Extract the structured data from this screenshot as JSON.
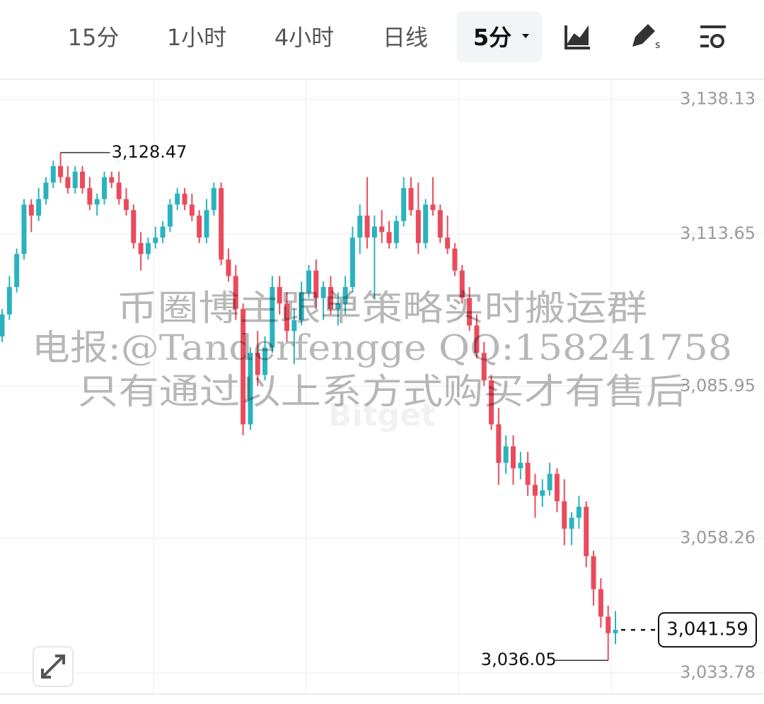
{
  "tabs": [
    "15分",
    "1小时",
    "4小时",
    "日线",
    "5分"
  ],
  "watermark": [
    "币圈博主跟单策略实时搬运群",
    "电报:@Tanderfengge QQ:158241758",
    "只有通过以上系方式购买才有售后"
  ],
  "logo": "Bitget",
  "chart_data": {
    "type": "candlestick",
    "up_color": "#2ab3bf",
    "down_color": "#ea4b5c",
    "ylim": [
      3029.9,
      3141.7
    ],
    "yticks": [
      {
        "value": 3138.13,
        "label": "3,138.13"
      },
      {
        "value": 3113.65,
        "label": "3,113.65"
      },
      {
        "value": 3085.95,
        "label": "3,085.95"
      },
      {
        "value": 3058.26,
        "label": "3,058.26"
      },
      {
        "value": 3033.78,
        "label": "3,033.78"
      }
    ],
    "grid": true,
    "max_label": "3,128.47",
    "min_label": "3,036.05",
    "last_label": "3,041.59",
    "candles": [
      {
        "open": 3095,
        "high": 3100,
        "low": 3094,
        "close": 3099
      },
      {
        "open": 3099,
        "high": 3106,
        "low": 3098,
        "close": 3104
      },
      {
        "open": 3104,
        "high": 3111,
        "low": 3103,
        "close": 3110
      },
      {
        "open": 3110,
        "high": 3120,
        "low": 3109,
        "close": 3119
      },
      {
        "open": 3119,
        "high": 3120,
        "low": 3114,
        "close": 3117
      },
      {
        "open": 3117,
        "high": 3122,
        "low": 3116,
        "close": 3120
      },
      {
        "open": 3120,
        "high": 3124,
        "low": 3119,
        "close": 3123
      },
      {
        "open": 3123,
        "high": 3127,
        "low": 3122,
        "close": 3126
      },
      {
        "open": 3126,
        "high": 3128.47,
        "low": 3123,
        "close": 3124
      },
      {
        "open": 3124,
        "high": 3126,
        "low": 3121,
        "close": 3122
      },
      {
        "open": 3122,
        "high": 3126,
        "low": 3121,
        "close": 3125
      },
      {
        "open": 3125,
        "high": 3126,
        "low": 3121,
        "close": 3122
      },
      {
        "open": 3122,
        "high": 3124,
        "low": 3118,
        "close": 3119
      },
      {
        "open": 3119,
        "high": 3121,
        "low": 3117,
        "close": 3120
      },
      {
        "open": 3120,
        "high": 3125,
        "low": 3119,
        "close": 3124
      },
      {
        "open": 3124,
        "high": 3125,
        "low": 3122,
        "close": 3123
      },
      {
        "open": 3123,
        "high": 3125,
        "low": 3119,
        "close": 3120
      },
      {
        "open": 3120,
        "high": 3122,
        "low": 3117,
        "close": 3118
      },
      {
        "open": 3118,
        "high": 3119,
        "low": 3111,
        "close": 3112
      },
      {
        "open": 3112,
        "high": 3114,
        "low": 3107,
        "close": 3110
      },
      {
        "open": 3110,
        "high": 3113,
        "low": 3109,
        "close": 3112
      },
      {
        "open": 3112,
        "high": 3115,
        "low": 3111,
        "close": 3113
      },
      {
        "open": 3113,
        "high": 3116,
        "low": 3112,
        "close": 3115
      },
      {
        "open": 3115,
        "high": 3120,
        "low": 3114,
        "close": 3119
      },
      {
        "open": 3119,
        "high": 3122,
        "low": 3118,
        "close": 3121
      },
      {
        "open": 3121,
        "high": 3122,
        "low": 3118,
        "close": 3119
      },
      {
        "open": 3119,
        "high": 3121,
        "low": 3116,
        "close": 3117
      },
      {
        "open": 3117,
        "high": 3118,
        "low": 3112,
        "close": 3113
      },
      {
        "open": 3113,
        "high": 3120,
        "low": 3112,
        "close": 3118
      },
      {
        "open": 3118,
        "high": 3123,
        "low": 3117,
        "close": 3122
      },
      {
        "open": 3122,
        "high": 3123,
        "low": 3108,
        "close": 3109
      },
      {
        "open": 3109,
        "high": 3111,
        "low": 3105,
        "close": 3106
      },
      {
        "open": 3106,
        "high": 3108,
        "low": 3098,
        "close": 3100
      },
      {
        "open": 3100,
        "high": 3101,
        "low": 3077,
        "close": 3079
      },
      {
        "open": 3079,
        "high": 3093,
        "low": 3078,
        "close": 3092
      },
      {
        "open": 3092,
        "high": 3096,
        "low": 3086,
        "close": 3088
      },
      {
        "open": 3088,
        "high": 3095,
        "low": 3087,
        "close": 3093
      },
      {
        "open": 3093,
        "high": 3106,
        "low": 3092,
        "close": 3104
      },
      {
        "open": 3104,
        "high": 3106,
        "low": 3099,
        "close": 3101
      },
      {
        "open": 3101,
        "high": 3103,
        "low": 3094,
        "close": 3096
      },
      {
        "open": 3096,
        "high": 3100,
        "low": 3090,
        "close": 3098
      },
      {
        "open": 3098,
        "high": 3105,
        "low": 3097,
        "close": 3103
      },
      {
        "open": 3103,
        "high": 3108,
        "low": 3102,
        "close": 3107
      },
      {
        "open": 3107,
        "high": 3109,
        "low": 3100,
        "close": 3102
      },
      {
        "open": 3102,
        "high": 3105,
        "low": 3098,
        "close": 3104
      },
      {
        "open": 3104,
        "high": 3106,
        "low": 3099,
        "close": 3100
      },
      {
        "open": 3100,
        "high": 3103,
        "low": 3097,
        "close": 3101
      },
      {
        "open": 3101,
        "high": 3106,
        "low": 3099,
        "close": 3104
      },
      {
        "open": 3104,
        "high": 3115,
        "low": 3103,
        "close": 3113
      },
      {
        "open": 3113,
        "high": 3119,
        "low": 3110,
        "close": 3117
      },
      {
        "open": 3117,
        "high": 3124,
        "low": 3111,
        "close": 3113
      },
      {
        "open": 3113,
        "high": 3117,
        "low": 3102,
        "close": 3115
      },
      {
        "open": 3115,
        "high": 3118,
        "low": 3112,
        "close": 3114
      },
      {
        "open": 3114,
        "high": 3116,
        "low": 3111,
        "close": 3112
      },
      {
        "open": 3112,
        "high": 3117,
        "low": 3111,
        "close": 3116
      },
      {
        "open": 3116,
        "high": 3124,
        "low": 3115,
        "close": 3122
      },
      {
        "open": 3122,
        "high": 3124,
        "low": 3117,
        "close": 3118
      },
      {
        "open": 3118,
        "high": 3123,
        "low": 3110,
        "close": 3112
      },
      {
        "open": 3112,
        "high": 3120,
        "low": 3111,
        "close": 3119
      },
      {
        "open": 3119,
        "high": 3124,
        "low": 3117,
        "close": 3118
      },
      {
        "open": 3118,
        "high": 3119,
        "low": 3112,
        "close": 3113
      },
      {
        "open": 3113,
        "high": 3117,
        "low": 3110,
        "close": 3111
      },
      {
        "open": 3111,
        "high": 3112,
        "low": 3106,
        "close": 3107
      },
      {
        "open": 3107,
        "high": 3108,
        "low": 3101,
        "close": 3102
      },
      {
        "open": 3102,
        "high": 3104,
        "low": 3096,
        "close": 3097
      },
      {
        "open": 3097,
        "high": 3099,
        "low": 3091,
        "close": 3092
      },
      {
        "open": 3092,
        "high": 3094,
        "low": 3086,
        "close": 3087
      },
      {
        "open": 3087,
        "high": 3088,
        "low": 3078,
        "close": 3079
      },
      {
        "open": 3079,
        "high": 3082,
        "low": 3068,
        "close": 3072
      },
      {
        "open": 3072,
        "high": 3077,
        "low": 3070,
        "close": 3075
      },
      {
        "open": 3075,
        "high": 3077,
        "low": 3068,
        "close": 3071
      },
      {
        "open": 3071,
        "high": 3074,
        "low": 3069,
        "close": 3072
      },
      {
        "open": 3072,
        "high": 3074,
        "low": 3066,
        "close": 3068
      },
      {
        "open": 3068,
        "high": 3070,
        "low": 3062,
        "close": 3066
      },
      {
        "open": 3066,
        "high": 3069,
        "low": 3064,
        "close": 3067
      },
      {
        "open": 3067,
        "high": 3072,
        "low": 3066,
        "close": 3070
      },
      {
        "open": 3070,
        "high": 3071,
        "low": 3063,
        "close": 3065
      },
      {
        "open": 3065,
        "high": 3069,
        "low": 3057,
        "close": 3060
      },
      {
        "open": 3060,
        "high": 3063,
        "low": 3057,
        "close": 3062
      },
      {
        "open": 3062,
        "high": 3066,
        "low": 3060,
        "close": 3064
      },
      {
        "open": 3064,
        "high": 3065,
        "low": 3053,
        "close": 3055
      },
      {
        "open": 3055,
        "high": 3056,
        "low": 3046,
        "close": 3049
      },
      {
        "open": 3049,
        "high": 3051,
        "low": 3042,
        "close": 3044
      },
      {
        "open": 3044,
        "high": 3046,
        "low": 3036.05,
        "close": 3041
      },
      {
        "open": 3041,
        "high": 3045,
        "low": 3039,
        "close": 3041.59
      }
    ]
  }
}
